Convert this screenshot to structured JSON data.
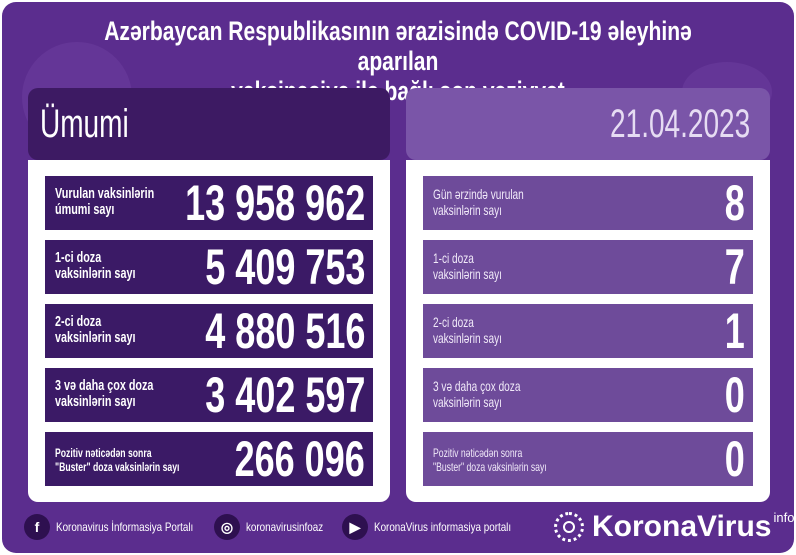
{
  "title_line1": "Azərbaycan Respublikasının ərazisində COVID-19 əleyhinə aparılan",
  "title_line2": "vaksinasiya ilə bağlı son vəziyyət",
  "left": {
    "header": "Ümumi",
    "rows": [
      {
        "label": "Vurulan vaksinlərin\númumi sayı",
        "value": "13 958 962"
      },
      {
        "label": "1-ci doza\nvaksinlərin sayı",
        "value": "5 409 753"
      },
      {
        "label": "2-ci doza\nvaksinlərin sayı",
        "value": "4 880 516"
      },
      {
        "label": "3 və daha çox doza\nvaksinlərin sayı",
        "value": "3 402 597"
      },
      {
        "label": "Pozitiv nəticədən sonra\n\"Buster\" doza vaksinlərin sayı",
        "value": "266 096"
      }
    ]
  },
  "right": {
    "header": "21.04.2023",
    "rows": [
      {
        "label": "Gün ərzində vurulan\nvaksinlərin sayı",
        "value": "8"
      },
      {
        "label": "1-ci doza\nvaksinlərin sayı",
        "value": "7"
      },
      {
        "label": "2-ci doza\nvaksinlərin sayı",
        "value": "1"
      },
      {
        "label": "3 və daha çox doza\nvaksinlərin sayı",
        "value": "0"
      },
      {
        "label": "Pozitiv nəticədən sonra\n\"Buster\" doza vaksinlərin sayı",
        "value": "0"
      }
    ]
  },
  "footer": {
    "facebook": {
      "icon": "facebook-icon",
      "text": "Koronavirus İnformasiya Portalı"
    },
    "instagram": {
      "icon": "instagram-icon",
      "text": "koronavirusinfoaz"
    },
    "youtube": {
      "icon": "youtube-icon",
      "text": "KoronaVirus informasiya portalı"
    },
    "logo": {
      "name": "KoronaVirus",
      "sup": "info"
    }
  },
  "colors": {
    "background": "#5b2d8e",
    "left_rows": "#3b1a66",
    "right_rows": "#6e4b9a"
  }
}
